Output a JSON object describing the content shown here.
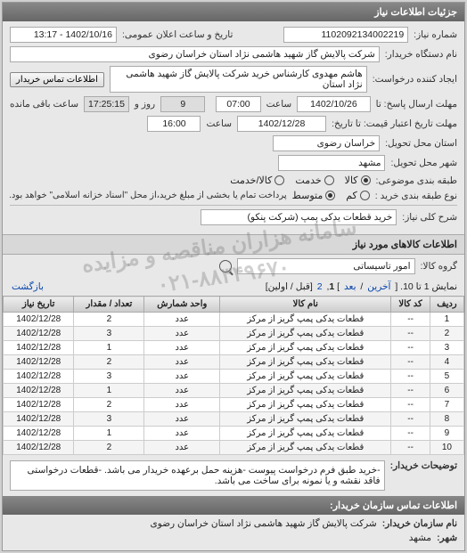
{
  "header": {
    "title": "جزئیات اطلاعات نیاز"
  },
  "general": {
    "req_no_label": "شماره نیاز:",
    "req_no": "1102092134002219",
    "ann_date_label": "تاریخ و ساعت اعلان عمومی:",
    "ann_date": "1402/10/16 - 13:17",
    "buyer_org_label": "نام دستگاه خریدار:",
    "buyer_org": "شرکت پالایش گاز شهید هاشمی نژاد   استان خراسان رضوی",
    "creator_label": "ایجاد کننده درخواست:",
    "creator": "هاشم مهدوی کارشناس خرید شرکت پالایش گاز شهید هاشمی نژاد   استان",
    "contact_btn": "اطلاعات تماس خریدار",
    "deadline_send_label": "مهلت ارسال پاسخ: تا",
    "deadline_send_date": "1402/10/26",
    "time_label": "ساعت",
    "deadline_send_time": "07:00",
    "days_remain": "9",
    "days_label": "روز و",
    "time_remain": "17:25:15",
    "time_remain_label": "ساعت باقی مانده",
    "price_deadline_label": "مهلت تاریخ اعتبار قیمت: تا تاریخ:",
    "price_deadline_date": "1402/12/28",
    "price_deadline_time": "16:00",
    "province_label": "استان محل تحویل:",
    "province": "خراسان رضوی",
    "city_label": "شهر محل تحویل:",
    "city": "مشهد",
    "pack_label": "طبقه بندی موضوعی:",
    "pack_opts": {
      "goods": "کالا",
      "service": "خدمت",
      "both": "کالا/خدمت"
    },
    "pay_label": "نوع طبقه بندی خرید :",
    "pay_opts": {
      "low": "کم",
      "med": "متوسط",
      "note": "پرداخت تمام یا بخشی از مبلغ خرید،از محل \"اسناد خزانه اسلامی\" خواهد بود."
    },
    "need_title_label": "شرح کلی نیاز:",
    "need_title": "خرید قطعات یدکی پمپ (شرکت پنکو)"
  },
  "goods_section": {
    "title": "اطلاعات کالاهای مورد نیاز",
    "group_label": "گروه کالا:",
    "group_value": "امور تاسیساتی"
  },
  "pager": {
    "text_prefix": "نمایش 1 تا 10. [ ",
    "last": "آخرین",
    "sep": " / ",
    "next": "بعد",
    "text_mid": " ] ",
    "p1": "1",
    "p2": "2",
    "text_suffix": " [قبل / اولین]",
    "back": "بازگشت"
  },
  "table": {
    "cols": [
      "ردیف",
      "کد کالا",
      "نام کالا",
      "واحد شمارش",
      "تعداد / مقدار",
      "تاریخ نیاز"
    ],
    "rows": [
      [
        "1",
        "--",
        "قطعات یدکی پمپ گریز از مرکز",
        "عدد",
        "2",
        "1402/12/28"
      ],
      [
        "2",
        "--",
        "قطعات یدکی پمپ گریز از مرکز",
        "عدد",
        "3",
        "1402/12/28"
      ],
      [
        "3",
        "--",
        "قطعات یدکی پمپ گریز از مرکز",
        "عدد",
        "1",
        "1402/12/28"
      ],
      [
        "4",
        "--",
        "قطعات یدکی پمپ گریز از مرکز",
        "عدد",
        "2",
        "1402/12/28"
      ],
      [
        "5",
        "--",
        "قطعات یدکی پمپ گریز از مرکز",
        "عدد",
        "3",
        "1402/12/28"
      ],
      [
        "6",
        "--",
        "قطعات یدکی پمپ گریز از مرکز",
        "عدد",
        "1",
        "1402/12/28"
      ],
      [
        "7",
        "--",
        "قطعات یدکی پمپ گریز از مرکز",
        "عدد",
        "2",
        "1402/12/28"
      ],
      [
        "8",
        "--",
        "قطعات یدکی پمپ گریز از مرکز",
        "عدد",
        "3",
        "1402/12/28"
      ],
      [
        "9",
        "--",
        "قطعات یدکی پمپ گریز از مرکز",
        "عدد",
        "1",
        "1402/12/28"
      ],
      [
        "10",
        "--",
        "قطعات یدکی پمپ گریز از مرکز",
        "عدد",
        "2",
        "1402/12/28"
      ]
    ]
  },
  "notes": {
    "label": "توضیحات خریدار:",
    "text": "-خرید طبق فرم درخواست پیوست -هزینه حمل برعهده خریدار می باشد. -قطعات درخواستی فاقد نقشه و یا نمونه برای ساخت می باشد."
  },
  "contact": {
    "header": "اطلاعات تماس سازمان خریدار:",
    "org_label": "نام سازمان خریدار:",
    "org": "شرکت پالایش گاز شهید هاشمی نژاد استان خراسان رضوی",
    "city_label": "شهر:",
    "city": "مشهد"
  },
  "watermark": {
    "line1": "سامانه هزاران مناقصه و مزایده",
    "line2": "۰۲۱-۸۸۳۴۹۶۷۰"
  }
}
